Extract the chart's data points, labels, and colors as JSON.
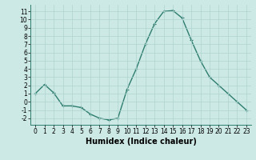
{
  "x": [
    0,
    1,
    2,
    3,
    4,
    5,
    6,
    7,
    8,
    9,
    10,
    11,
    12,
    13,
    14,
    15,
    16,
    17,
    18,
    19,
    20,
    21,
    22,
    23
  ],
  "y": [
    1.0,
    2.1,
    1.1,
    -0.5,
    -0.5,
    -0.7,
    -1.5,
    -2.0,
    -2.2,
    -2.0,
    1.5,
    4.0,
    7.0,
    9.5,
    11.0,
    11.1,
    10.2,
    7.5,
    5.0,
    3.0,
    2.0,
    1.0,
    0.0,
    -1.0
  ],
  "xlabel": "Humidex (Indice chaleur)",
  "line_color": "#2e7d6e",
  "marker_color": "#2e7d6e",
  "bg_color": "#cce9e5",
  "grid_color": "#b0d4d0",
  "ylim": [
    -2.8,
    11.8
  ],
  "xlim": [
    -0.5,
    23.5
  ],
  "yticks": [
    -2,
    -1,
    0,
    1,
    2,
    3,
    4,
    5,
    6,
    7,
    8,
    9,
    10,
    11
  ],
  "xticks": [
    0,
    1,
    2,
    3,
    4,
    5,
    6,
    7,
    8,
    9,
    10,
    11,
    12,
    13,
    14,
    15,
    16,
    17,
    18,
    19,
    20,
    21,
    22,
    23
  ],
  "tick_label_fontsize": 5.5,
  "xlabel_fontsize": 7.0,
  "line_width": 1.0,
  "marker_size": 2.5
}
